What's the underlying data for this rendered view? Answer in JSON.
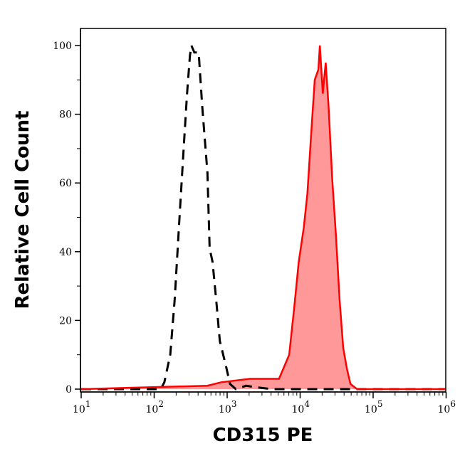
{
  "chart_data": {
    "type": "area",
    "title": "",
    "xlabel": "CD315 PE",
    "ylabel": "Relative Cell Count",
    "x_scale": "log",
    "xlim": [
      10,
      1000000
    ],
    "ylim": [
      0,
      105
    ],
    "x_tick_labels": [
      {
        "base": "10",
        "exp": "1"
      },
      {
        "base": "10",
        "exp": "2"
      },
      {
        "base": "10",
        "exp": "3"
      },
      {
        "base": "10",
        "exp": "4"
      },
      {
        "base": "10",
        "exp": "5"
      },
      {
        "base": "10",
        "exp": "6"
      }
    ],
    "y_ticks": [
      "0",
      "20",
      "40",
      "60",
      "80",
      "100"
    ],
    "grid": false,
    "series": [
      {
        "style": "dashed-black-line",
        "color": "#000000",
        "x": [
          10,
          123,
          138,
          166,
          191,
          224,
          257,
          282,
          309,
          324,
          355,
          407,
          457,
          537,
          575,
          631,
          708,
          794,
          955,
          1096,
          1318,
          1820,
          2570,
          4074,
          1000000
        ],
        "y": [
          0,
          0,
          2,
          10,
          26,
          51,
          72,
          86,
          97,
          100,
          98,
          98,
          82,
          63,
          41,
          37,
          26,
          14,
          7,
          1.5,
          0,
          1,
          0.5,
          0,
          0
        ]
      },
      {
        "style": "filled-red",
        "color": "#ff0000",
        "fill": "#ff9999",
        "x": [
          10,
          537,
          832,
          2042,
          5129,
          5623,
          7079,
          8318,
          9550,
          11220,
          12589,
          14125,
          15849,
          17783,
          18621,
          20417,
          22387,
          24547,
          27542,
          30903,
          34674,
          38905,
          43652,
          48978,
          60256,
          1000000
        ],
        "y": [
          0,
          1,
          2,
          3,
          3,
          5,
          10,
          24,
          37,
          47,
          57,
          74,
          90,
          93,
          100,
          86,
          95,
          82,
          61,
          45,
          26,
          12,
          6,
          1.5,
          0,
          0
        ]
      }
    ]
  }
}
